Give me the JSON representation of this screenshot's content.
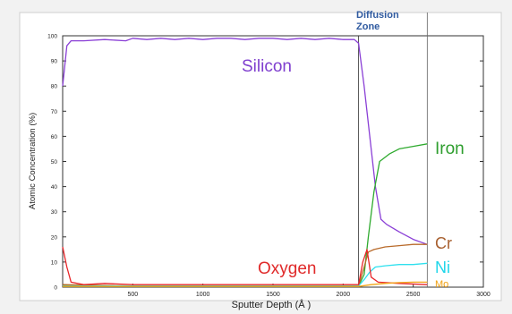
{
  "chart_data": {
    "type": "line",
    "xlabel": "Sputter Depth (Å )",
    "ylabel": "Atomic Concentration (%)",
    "xlim": [
      0,
      3000
    ],
    "ylim": [
      0,
      100
    ],
    "xticks": [
      500,
      1000,
      1500,
      2000,
      2500,
      3000
    ],
    "yticks": [
      0,
      10,
      20,
      30,
      40,
      50,
      60,
      70,
      80,
      90,
      100
    ],
    "grid": false,
    "annotation": {
      "text_line1": "Diffusion",
      "text_line2": "Zone",
      "x_start": 2110,
      "x_end": 2600
    },
    "series": [
      {
        "name": "Silicon",
        "color": "#8a3fd6",
        "label_color": "#7f3fcf",
        "points": [
          [
            0,
            80
          ],
          [
            30,
            96
          ],
          [
            60,
            98
          ],
          [
            150,
            98
          ],
          [
            300,
            98.5
          ],
          [
            450,
            98
          ],
          [
            500,
            99
          ],
          [
            600,
            98.5
          ],
          [
            700,
            99
          ],
          [
            800,
            98.5
          ],
          [
            900,
            99
          ],
          [
            1000,
            98.5
          ],
          [
            1100,
            99
          ],
          [
            1200,
            99
          ],
          [
            1300,
            98.5
          ],
          [
            1400,
            99
          ],
          [
            1500,
            99
          ],
          [
            1600,
            98.5
          ],
          [
            1700,
            99
          ],
          [
            1800,
            98.5
          ],
          [
            1900,
            99
          ],
          [
            2000,
            98.5
          ],
          [
            2080,
            98.5
          ],
          [
            2110,
            97
          ],
          [
            2150,
            80
          ],
          [
            2190,
            60
          ],
          [
            2230,
            40
          ],
          [
            2270,
            27
          ],
          [
            2310,
            25
          ],
          [
            2400,
            22
          ],
          [
            2500,
            19
          ],
          [
            2600,
            17
          ]
        ]
      },
      {
        "name": "Iron",
        "color": "#2eaa2e",
        "label_color": "#2e9e2e",
        "points": [
          [
            0,
            1
          ],
          [
            100,
            0.5
          ],
          [
            500,
            0.5
          ],
          [
            1000,
            0.5
          ],
          [
            1500,
            0.5
          ],
          [
            2000,
            0.5
          ],
          [
            2110,
            0.5
          ],
          [
            2150,
            5
          ],
          [
            2180,
            20
          ],
          [
            2220,
            38
          ],
          [
            2260,
            50
          ],
          [
            2330,
            53
          ],
          [
            2400,
            55
          ],
          [
            2500,
            56
          ],
          [
            2600,
            57
          ]
        ]
      },
      {
        "name": "Cr",
        "color": "#b86a2a",
        "label_color": "#a86030",
        "points": [
          [
            0,
            1
          ],
          [
            500,
            0.5
          ],
          [
            1000,
            0.5
          ],
          [
            1500,
            0.5
          ],
          [
            2000,
            0.5
          ],
          [
            2110,
            0.5
          ],
          [
            2150,
            8
          ],
          [
            2180,
            14
          ],
          [
            2220,
            15
          ],
          [
            2300,
            16
          ],
          [
            2400,
            16.5
          ],
          [
            2500,
            17
          ],
          [
            2600,
            17
          ]
        ]
      },
      {
        "name": "Ni",
        "color": "#2ee0ee",
        "label_color": "#1fd6ea",
        "points": [
          [
            0,
            0.5
          ],
          [
            500,
            0.5
          ],
          [
            1000,
            0.5
          ],
          [
            1500,
            0.5
          ],
          [
            2000,
            0.5
          ],
          [
            2110,
            0.5
          ],
          [
            2150,
            3
          ],
          [
            2190,
            6
          ],
          [
            2230,
            8
          ],
          [
            2300,
            8.5
          ],
          [
            2400,
            9
          ],
          [
            2500,
            9
          ],
          [
            2600,
            9.5
          ]
        ]
      },
      {
        "name": "Oxygen",
        "color": "#e8262a",
        "label_color": "#e02a2a",
        "points": [
          [
            0,
            16
          ],
          [
            30,
            8
          ],
          [
            60,
            2
          ],
          [
            150,
            1
          ],
          [
            300,
            1.5
          ],
          [
            500,
            1
          ],
          [
            800,
            1
          ],
          [
            1000,
            1
          ],
          [
            1300,
            1
          ],
          [
            1500,
            1
          ],
          [
            1800,
            1
          ],
          [
            2000,
            1
          ],
          [
            2110,
            1
          ],
          [
            2140,
            10
          ],
          [
            2170,
            15
          ],
          [
            2200,
            4
          ],
          [
            2250,
            2
          ],
          [
            2400,
            1.5
          ],
          [
            2600,
            1
          ]
        ]
      },
      {
        "name": "Mo",
        "color": "#f2a516",
        "label_color": "#f0a010",
        "points": [
          [
            0,
            0.3
          ],
          [
            500,
            0.3
          ],
          [
            1000,
            0.3
          ],
          [
            1500,
            0.3
          ],
          [
            2000,
            0.3
          ],
          [
            2110,
            0.3
          ],
          [
            2200,
            1
          ],
          [
            2300,
            1.5
          ],
          [
            2400,
            1.8
          ],
          [
            2500,
            2
          ],
          [
            2600,
            2
          ]
        ]
      }
    ]
  }
}
